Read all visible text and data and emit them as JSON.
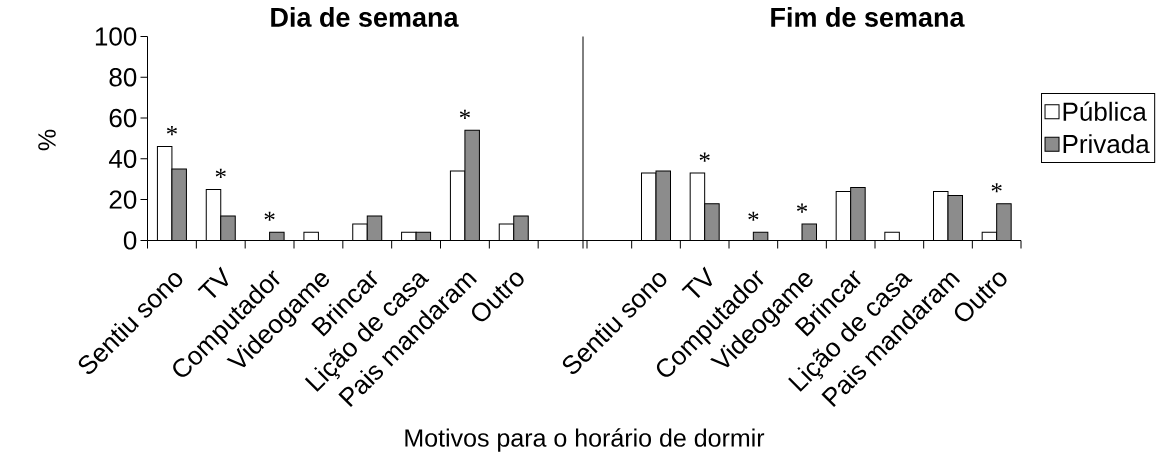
{
  "chart_data": [
    {
      "type": "bar",
      "title": "Dia de semana",
      "xlabel": "Motivos para o horário de dormir",
      "ylabel": "%",
      "categories": [
        "Sentiu sono",
        "TV",
        "Computador",
        "Videogame",
        "Brincar",
        "Lição de casa",
        "Pais mandaram",
        "Outro",
        null
      ],
      "series": [
        {
          "color": "#ffffff",
          "values": [
            46,
            25,
            0,
            4,
            8,
            4,
            34,
            8,
            null
          ]
        },
        {
          "color": "#8c8c8c",
          "values": [
            35,
            12,
            4,
            0,
            12,
            4,
            54,
            12,
            null
          ]
        }
      ],
      "ylim": [
        0,
        100
      ],
      "yticks": [
        0,
        20,
        40,
        60,
        80,
        100
      ],
      "annotations": [
        {
          "text": "*",
          "x": "Sentiu sono",
          "y": 46
        },
        {
          "text": "*",
          "x": "TV",
          "y": 25
        },
        {
          "text": "*",
          "x": "Computador",
          "y": 4
        },
        {
          "text": "*",
          "x": "Pais mandaram",
          "y": 54
        }
      ]
    },
    {
      "type": "bar",
      "title": "Fim de semana",
      "categories": [
        null,
        "Sentiu sono",
        "TV",
        "Computador",
        "Videogame",
        "Brincar",
        "Lição de casa",
        "Pais mandaram",
        "Outro"
      ],
      "series": [
        {
          "name": "Pública",
          "color": "#ffffff",
          "values": [
            null,
            33,
            33,
            0,
            0,
            24,
            4,
            24,
            4
          ]
        },
        {
          "name": "Privada",
          "color": "#8c8c8c",
          "values": [
            null,
            34,
            18,
            4,
            8,
            26,
            0,
            22,
            18
          ]
        }
      ],
      "ylim": [
        0,
        100
      ],
      "tick_labels": "x",
      "legend": "right",
      "annotations": [
        {
          "text": "*",
          "x": "TV",
          "y": 33
        },
        {
          "text": "*",
          "x": "Computador",
          "y": 4
        },
        {
          "text": "*",
          "x": "Videogame",
          "y": 8
        },
        {
          "text": "*",
          "x": "Outro",
          "y": 18
        }
      ]
    }
  ]
}
